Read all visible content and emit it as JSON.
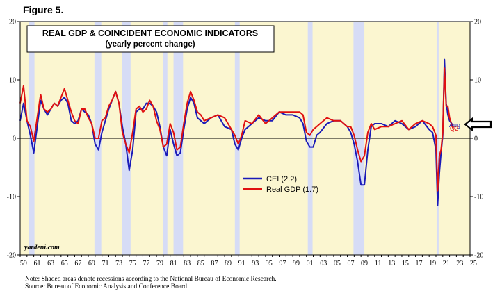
{
  "figure_label": "Figure 5.",
  "footnote": {
    "note": "Note: Shaded areas denote recessions according to the National Bureau of Economic Research.",
    "source": "Source: Bureau of Economic Analysis and Conference Board."
  },
  "chart_data": {
    "type": "line",
    "title": "REAL GDP & COINCIDENT ECONOMIC INDICATORS",
    "subtitle": "(yearly percent change)",
    "watermark": "yardeni.com",
    "xlim": [
      1959,
      2025
    ],
    "ylim": [
      -20,
      20
    ],
    "y_ticks": [
      -20,
      -10,
      0,
      10,
      20
    ],
    "x_tick_labels": [
      "59",
      "61",
      "63",
      "65",
      "67",
      "69",
      "71",
      "73",
      "75",
      "77",
      "79",
      "81",
      "83",
      "85",
      "87",
      "89",
      "91",
      "93",
      "95",
      "97",
      "99",
      "01",
      "03",
      "05",
      "07",
      "09",
      "11",
      "13",
      "15",
      "17",
      "19",
      "21",
      "23",
      "25"
    ],
    "legend_position": "center-right",
    "recessions": [
      [
        1960.3,
        1961.1
      ],
      [
        1969.9,
        1970.9
      ],
      [
        1973.9,
        1975.2
      ],
      [
        1980.0,
        1980.6
      ],
      [
        1981.5,
        1982.9
      ],
      [
        1990.5,
        1991.2
      ],
      [
        2001.2,
        2001.9
      ],
      [
        2007.9,
        2009.5
      ],
      [
        2020.1,
        2020.4
      ]
    ],
    "series": [
      {
        "name": "CEI (2.2)",
        "color": "#1a1ab8",
        "x": [
          1959.0,
          1959.5,
          1960.0,
          1960.5,
          1961.0,
          1961.5,
          1962.0,
          1962.5,
          1963.0,
          1963.5,
          1964.0,
          1964.5,
          1965.0,
          1965.5,
          1966.0,
          1966.5,
          1967.0,
          1967.5,
          1968.0,
          1968.5,
          1969.0,
          1969.5,
          1970.0,
          1970.5,
          1971.0,
          1971.5,
          1972.0,
          1972.5,
          1973.0,
          1973.5,
          1974.0,
          1974.5,
          1975.0,
          1975.5,
          1976.0,
          1976.5,
          1977.0,
          1977.5,
          1978.0,
          1978.5,
          1979.0,
          1979.5,
          1980.0,
          1980.5,
          1981.0,
          1981.5,
          1982.0,
          1982.5,
          1983.0,
          1983.5,
          1984.0,
          1984.5,
          1985.0,
          1985.5,
          1986.0,
          1987.0,
          1988.0,
          1989.0,
          1990.0,
          1990.5,
          1991.0,
          1991.5,
          1992.0,
          1993.0,
          1994.0,
          1995.0,
          1996.0,
          1997.0,
          1998.0,
          1999.0,
          2000.0,
          2000.5,
          2001.0,
          2001.5,
          2002.0,
          2002.5,
          2003.0,
          2004.0,
          2005.0,
          2006.0,
          2007.0,
          2007.5,
          2008.0,
          2008.5,
          2009.0,
          2009.5,
          2010.0,
          2010.5,
          2011.0,
          2012.0,
          2013.0,
          2014.0,
          2015.0,
          2016.0,
          2017.0,
          2018.0,
          2019.0,
          2019.5,
          2020.0,
          2020.25,
          2020.5,
          2020.75,
          2021.0,
          2021.25,
          2021.5,
          2021.75,
          2022.0,
          2022.5
        ],
        "values": [
          3.0,
          6.0,
          3.0,
          0.5,
          -2.5,
          2.0,
          6.5,
          5.0,
          4.0,
          5.0,
          6.0,
          5.5,
          6.5,
          7.0,
          6.0,
          3.0,
          2.5,
          3.0,
          5.0,
          4.5,
          4.0,
          2.5,
          -1.0,
          -2.0,
          1.0,
          3.0,
          5.0,
          6.5,
          8.0,
          6.0,
          2.0,
          -1.0,
          -5.5,
          -2.0,
          4.5,
          5.0,
          5.0,
          6.0,
          6.0,
          5.5,
          4.5,
          2.0,
          -1.5,
          -3.0,
          1.5,
          -1.0,
          -3.0,
          -2.5,
          1.5,
          5.0,
          7.0,
          6.0,
          3.5,
          3.0,
          2.5,
          3.5,
          4.0,
          2.0,
          1.5,
          -1.0,
          -2.0,
          0.0,
          1.5,
          2.5,
          3.5,
          3.0,
          3.0,
          4.5,
          4.0,
          4.0,
          3.5,
          2.5,
          -0.5,
          -1.5,
          -1.5,
          0.5,
          1.0,
          2.5,
          3.0,
          3.0,
          2.0,
          1.0,
          -1.0,
          -4.0,
          -8.0,
          -8.0,
          -2.0,
          2.0,
          2.5,
          2.5,
          2.0,
          3.0,
          2.5,
          1.5,
          2.0,
          3.0,
          1.5,
          1.0,
          -2.0,
          -11.5,
          -6.0,
          -2.5,
          0.5,
          13.5,
          6.0,
          4.0,
          3.0,
          2.2
        ]
      },
      {
        "name": "Real GDP (1.7)",
        "color": "#e01010",
        "x": [
          1959.0,
          1959.5,
          1960.0,
          1960.5,
          1961.0,
          1961.5,
          1962.0,
          1962.5,
          1963.0,
          1963.5,
          1964.0,
          1964.5,
          1965.0,
          1965.5,
          1966.0,
          1966.5,
          1967.0,
          1967.5,
          1968.0,
          1968.5,
          1969.0,
          1969.5,
          1970.0,
          1970.5,
          1971.0,
          1971.5,
          1972.0,
          1972.5,
          1973.0,
          1973.5,
          1974.0,
          1974.5,
          1975.0,
          1975.5,
          1976.0,
          1976.5,
          1977.0,
          1977.5,
          1978.0,
          1978.5,
          1979.0,
          1979.5,
          1980.0,
          1980.5,
          1981.0,
          1981.5,
          1982.0,
          1982.5,
          1983.0,
          1983.5,
          1984.0,
          1984.5,
          1985.0,
          1985.5,
          1986.0,
          1987.0,
          1988.0,
          1989.0,
          1990.0,
          1990.5,
          1991.0,
          1991.5,
          1992.0,
          1993.0,
          1994.0,
          1995.0,
          1996.0,
          1997.0,
          1998.0,
          1999.0,
          2000.0,
          2000.5,
          2001.0,
          2001.5,
          2002.0,
          2002.5,
          2003.0,
          2004.0,
          2005.0,
          2006.0,
          2007.0,
          2007.5,
          2008.0,
          2008.5,
          2009.0,
          2009.5,
          2010.0,
          2010.5,
          2011.0,
          2012.0,
          2013.0,
          2014.0,
          2015.0,
          2016.0,
          2017.0,
          2018.0,
          2019.0,
          2019.5,
          2020.0,
          2020.25,
          2020.5,
          2020.75,
          2021.0,
          2021.25,
          2021.5,
          2021.75,
          2022.0,
          2022.5
        ],
        "values": [
          6.0,
          9.0,
          3.0,
          2.0,
          -0.5,
          3.5,
          7.5,
          5.0,
          4.5,
          5.0,
          6.0,
          5.5,
          7.0,
          8.5,
          6.5,
          4.5,
          3.0,
          2.5,
          5.0,
          5.0,
          3.5,
          2.5,
          0.0,
          0.0,
          3.0,
          3.5,
          5.5,
          6.5,
          8.0,
          6.0,
          1.0,
          -1.0,
          -2.5,
          1.0,
          5.0,
          5.5,
          4.5,
          5.0,
          6.5,
          5.5,
          3.0,
          1.5,
          -1.5,
          -1.0,
          2.5,
          1.0,
          -2.0,
          -1.5,
          2.5,
          6.0,
          8.0,
          6.5,
          4.5,
          4.0,
          3.0,
          3.5,
          4.0,
          3.5,
          1.5,
          0.5,
          -1.0,
          0.5,
          3.0,
          2.5,
          4.0,
          2.5,
          3.5,
          4.5,
          4.5,
          4.5,
          4.5,
          4.0,
          1.0,
          0.5,
          1.5,
          2.0,
          2.5,
          3.5,
          3.0,
          3.0,
          2.0,
          2.0,
          0.5,
          -2.0,
          -4.0,
          -3.0,
          1.0,
          2.5,
          1.5,
          2.0,
          2.0,
          2.5,
          3.0,
          1.5,
          2.5,
          3.0,
          2.5,
          2.0,
          0.5,
          -9.0,
          -3.0,
          -2.0,
          1.0,
          12.0,
          5.5,
          5.5,
          3.5,
          1.7
        ]
      }
    ],
    "annotations": {
      "cei_last": "Aug",
      "gdp_last": "Q2"
    }
  }
}
